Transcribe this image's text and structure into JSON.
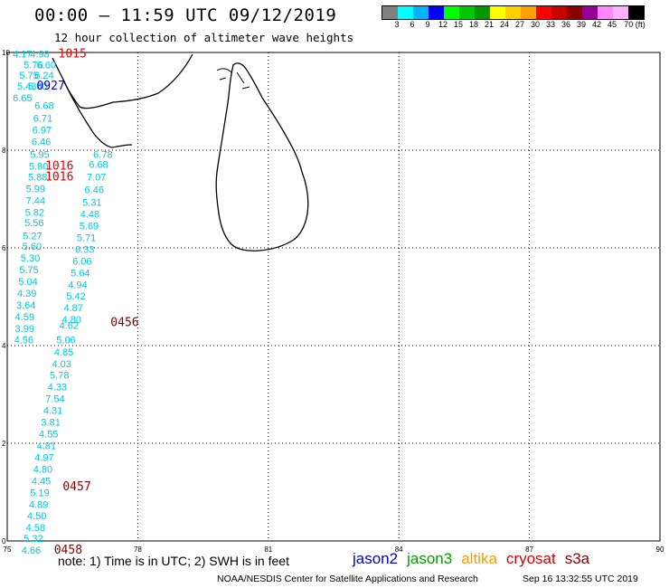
{
  "header": {
    "title": "00:00 – 11:59 UTC 09/12/2019",
    "subtitle": "12 hour collection of altimeter wave heights"
  },
  "color_scale": {
    "colors": [
      "#808080",
      "#00ffff",
      "#00b4ff",
      "#0000ff",
      "#00ff00",
      "#00c800",
      "#009600",
      "#ffff00",
      "#ffd000",
      "#ffa000",
      "#ff0000",
      "#c80000",
      "#8c0000",
      "#960096",
      "#ff88ff",
      "#ffb0ff",
      "#000000"
    ],
    "labels": [
      "3",
      "6",
      "9",
      "12",
      "15",
      "18",
      "21",
      "24",
      "27",
      "30",
      "33",
      "36",
      "39",
      "42",
      "45",
      "70 (ft)"
    ]
  },
  "map": {
    "lat_labels": [
      "10",
      "8",
      "6",
      "4",
      "2",
      "0"
    ],
    "lon_labels": [
      "75",
      "78",
      "81",
      "84",
      "87",
      "90"
    ],
    "cyan_color": "#00c8dc",
    "swh_points": [
      {
        "lon": 75.35,
        "lat": 9.9,
        "v": "4.17"
      },
      {
        "lon": 75.75,
        "lat": 9.9,
        "v": "4.98"
      },
      {
        "lon": 75.6,
        "lat": 9.68,
        "v": "5.76"
      },
      {
        "lon": 75.9,
        "lat": 9.68,
        "v": "6.60"
      },
      {
        "lon": 75.5,
        "lat": 9.46,
        "v": "5.75"
      },
      {
        "lon": 75.85,
        "lat": 9.46,
        "v": "6.24"
      },
      {
        "lon": 75.45,
        "lat": 9.24,
        "v": "5.43"
      },
      {
        "lon": 75.7,
        "lat": 9.24,
        "v": "5.60"
      },
      {
        "lon": 75.35,
        "lat": 9.0,
        "v": "6.65"
      },
      {
        "lon": 75.85,
        "lat": 8.84,
        "v": "6.68"
      },
      {
        "lon": 75.82,
        "lat": 8.58,
        "v": "6.71"
      },
      {
        "lon": 75.8,
        "lat": 8.34,
        "v": "6.97"
      },
      {
        "lon": 75.78,
        "lat": 8.1,
        "v": "6.46"
      },
      {
        "lon": 75.75,
        "lat": 7.84,
        "v": "5.95"
      },
      {
        "lon": 75.72,
        "lat": 7.6,
        "v": "5.80"
      },
      {
        "lon": 75.7,
        "lat": 7.38,
        "v": "5.88"
      },
      {
        "lon": 75.65,
        "lat": 7.14,
        "v": "5.99"
      },
      {
        "lon": 75.65,
        "lat": 6.9,
        "v": "7.44"
      },
      {
        "lon": 75.63,
        "lat": 6.66,
        "v": "5.82"
      },
      {
        "lon": 75.62,
        "lat": 6.44,
        "v": "5.56"
      },
      {
        "lon": 75.58,
        "lat": 6.18,
        "v": "5.27"
      },
      {
        "lon": 75.57,
        "lat": 5.96,
        "v": "5.60"
      },
      {
        "lon": 75.53,
        "lat": 5.72,
        "v": "5.30"
      },
      {
        "lon": 75.5,
        "lat": 5.48,
        "v": "5.75"
      },
      {
        "lon": 75.48,
        "lat": 5.24,
        "v": "5.04"
      },
      {
        "lon": 75.45,
        "lat": 5.0,
        "v": "4.39"
      },
      {
        "lon": 75.43,
        "lat": 4.76,
        "v": "3.64"
      },
      {
        "lon": 75.4,
        "lat": 4.52,
        "v": "4.59"
      },
      {
        "lon": 75.4,
        "lat": 4.28,
        "v": "3.99"
      },
      {
        "lon": 75.38,
        "lat": 4.05,
        "v": "4.56"
      },
      {
        "lon": 77.2,
        "lat": 7.84,
        "v": "6.78"
      },
      {
        "lon": 77.1,
        "lat": 7.64,
        "v": "6.68"
      },
      {
        "lon": 77.05,
        "lat": 7.38,
        "v": "7.07"
      },
      {
        "lon": 77.0,
        "lat": 7.12,
        "v": "6.46"
      },
      {
        "lon": 76.95,
        "lat": 6.86,
        "v": "5.31"
      },
      {
        "lon": 76.9,
        "lat": 6.62,
        "v": "4.48"
      },
      {
        "lon": 76.88,
        "lat": 6.38,
        "v": "5.69"
      },
      {
        "lon": 76.82,
        "lat": 6.14,
        "v": "5.71"
      },
      {
        "lon": 76.78,
        "lat": 5.9,
        "v": "6.33"
      },
      {
        "lon": 76.72,
        "lat": 5.66,
        "v": "6.06"
      },
      {
        "lon": 76.68,
        "lat": 5.42,
        "v": "5.64"
      },
      {
        "lon": 76.62,
        "lat": 5.18,
        "v": "4.94"
      },
      {
        "lon": 76.58,
        "lat": 4.94,
        "v": "5.42"
      },
      {
        "lon": 76.52,
        "lat": 4.7,
        "v": "4.87"
      },
      {
        "lon": 76.48,
        "lat": 4.46,
        "v": "4.80"
      },
      {
        "lon": 76.42,
        "lat": 4.34,
        "v": "4.62"
      },
      {
        "lon": 76.35,
        "lat": 4.05,
        "v": "5.06"
      },
      {
        "lon": 76.3,
        "lat": 3.8,
        "v": "4.85"
      },
      {
        "lon": 76.25,
        "lat": 3.56,
        "v": "4.03"
      },
      {
        "lon": 76.2,
        "lat": 3.32,
        "v": "5.78"
      },
      {
        "lon": 76.15,
        "lat": 3.08,
        "v": "4.33"
      },
      {
        "lon": 76.1,
        "lat": 2.84,
        "v": "7.54"
      },
      {
        "lon": 76.05,
        "lat": 2.6,
        "v": "4.31"
      },
      {
        "lon": 76.0,
        "lat": 2.36,
        "v": "3.81"
      },
      {
        "lon": 75.95,
        "lat": 2.12,
        "v": "4.55"
      },
      {
        "lon": 75.9,
        "lat": 1.88,
        "v": "4.81"
      },
      {
        "lon": 75.85,
        "lat": 1.64,
        "v": "4.97"
      },
      {
        "lon": 75.82,
        "lat": 1.4,
        "v": "4.80"
      },
      {
        "lon": 75.78,
        "lat": 1.16,
        "v": "4.45"
      },
      {
        "lon": 75.75,
        "lat": 0.92,
        "v": "5.19"
      },
      {
        "lon": 75.72,
        "lat": 0.68,
        "v": "4.89"
      },
      {
        "lon": 75.68,
        "lat": 0.44,
        "v": "4.50"
      },
      {
        "lon": 75.65,
        "lat": 0.2,
        "v": "4.58"
      },
      {
        "lon": 75.6,
        "lat": -0.02,
        "v": "5.32"
      },
      {
        "lon": 75.55,
        "lat": -0.26,
        "v": "4.66"
      }
    ],
    "pass_times": [
      {
        "lon": 76.5,
        "lat": 9.9,
        "t": "1015",
        "color": "#e00000"
      },
      {
        "lon": 76.0,
        "lat": 9.24,
        "t": "0927",
        "color": "#0000e0"
      },
      {
        "lon": 76.2,
        "lat": 7.6,
        "t": "1016",
        "color": "#e00000"
      },
      {
        "lon": 76.2,
        "lat": 7.38,
        "t": "1016",
        "color": "#e00000"
      },
      {
        "lon": 77.7,
        "lat": 4.4,
        "t": "0456",
        "color": "#8b0000"
      },
      {
        "lon": 76.6,
        "lat": 1.04,
        "t": "0457",
        "color": "#8b0000"
      },
      {
        "lon": 76.4,
        "lat": -0.26,
        "t": "0458",
        "color": "#8b0000"
      }
    ]
  },
  "note": "note:  1) Time is in UTC;  2) SWH is in feet",
  "satellites": [
    {
      "name": "jason2",
      "color": "#0000cc"
    },
    {
      "name": "jason3",
      "color": "#00a000"
    },
    {
      "name": "altika",
      "color": "#ff9900"
    },
    {
      "name": "cryosat",
      "color": "#dd0000"
    },
    {
      "name": "s3a",
      "color": "#8b0000"
    }
  ],
  "credit": "NOAA/NESDIS Center for Satellite Applications and Research",
  "credit_time": "Sep 16 13:32:55 UTC 2019"
}
